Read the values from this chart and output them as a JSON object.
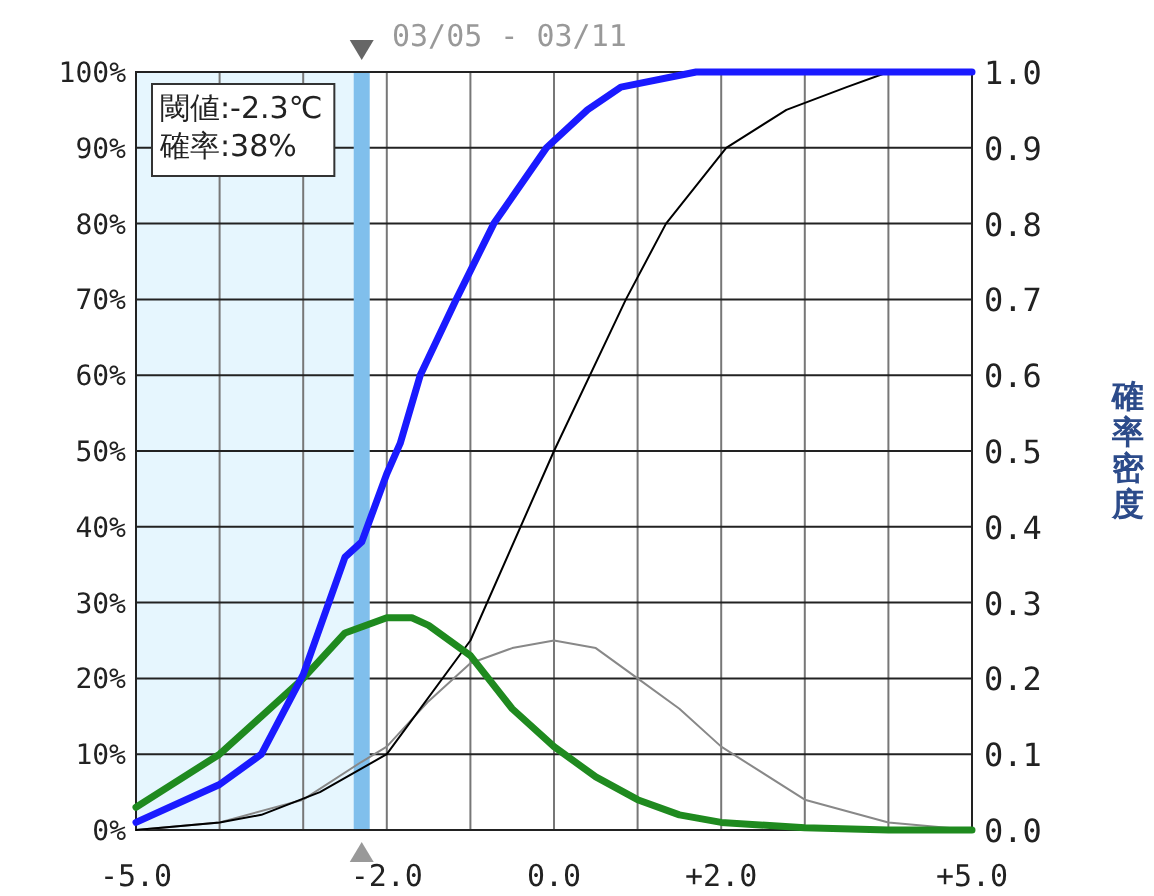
{
  "chart_data": {
    "type": "line",
    "title": "03/05 - 03/11",
    "y2label": "確率密度",
    "annotations": [
      "閾値:-2.3℃",
      "確率:38%"
    ],
    "xlim": [
      -5,
      5
    ],
    "xticks": [
      {
        "value": -5,
        "label": "-5.0"
      },
      {
        "value": -4,
        "label": null
      },
      {
        "value": -3,
        "label": null
      },
      {
        "value": -2,
        "label": "-2.0"
      },
      {
        "value": -1,
        "label": null
      },
      {
        "value": 0,
        "label": "0.0"
      },
      {
        "value": 1,
        "label": null
      },
      {
        "value": 2,
        "label": "+2.0"
      },
      {
        "value": 3,
        "label": null
      },
      {
        "value": 4,
        "label": null
      },
      {
        "value": 5,
        "label": "+5.0"
      }
    ],
    "ylim": [
      0,
      100
    ],
    "yticks": [
      {
        "value": 0,
        "label": "0%"
      },
      {
        "value": 10,
        "label": "10%"
      },
      {
        "value": 20,
        "label": "20%"
      },
      {
        "value": 30,
        "label": "30%"
      },
      {
        "value": 40,
        "label": "40%"
      },
      {
        "value": 50,
        "label": "50%"
      },
      {
        "value": 60,
        "label": "60%"
      },
      {
        "value": 70,
        "label": "70%"
      },
      {
        "value": 80,
        "label": "80%"
      },
      {
        "value": 90,
        "label": "90%"
      },
      {
        "value": 100,
        "label": "100%"
      }
    ],
    "y2lim": [
      0,
      1
    ],
    "y2ticks": [
      {
        "value": 0,
        "label": "0.0"
      },
      {
        "value": 0.1,
        "label": "0.1"
      },
      {
        "value": 0.2,
        "label": "0.2"
      },
      {
        "value": 0.3,
        "label": "0.3"
      },
      {
        "value": 0.4,
        "label": "0.4"
      },
      {
        "value": 0.5,
        "label": "0.5"
      },
      {
        "value": 0.6,
        "label": "0.6"
      },
      {
        "value": 0.7,
        "label": "0.7"
      },
      {
        "value": 0.8,
        "label": "0.8"
      },
      {
        "value": 0.9,
        "label": "0.9"
      },
      {
        "value": 1,
        "label": "1.0"
      }
    ],
    "grid": true,
    "bands": [
      {
        "axis": "x",
        "from": -5,
        "to": -2.3,
        "color": "#e6f6fe"
      }
    ],
    "ref_lines": [
      {
        "axis": "x",
        "value": -2.3,
        "color": "#80bfec"
      }
    ],
    "series": [
      {
        "color": "#888888",
        "axis": "y2",
        "x": [
          -5,
          -4,
          -3,
          -2.3,
          -2,
          -1.5,
          -1,
          -0.5,
          0,
          0.5,
          1,
          1.5,
          2,
          3,
          4,
          5
        ],
        "values": [
          0,
          0.01,
          0.04,
          0.09,
          0.11,
          0.17,
          0.22,
          0.24,
          0.25,
          0.24,
          0.2,
          0.16,
          0.11,
          0.04,
          0.01,
          0
        ]
      },
      {
        "color": "#000000",
        "x": [
          -5,
          -4,
          -3.5,
          -2.8,
          -2,
          -1,
          0,
          0.86,
          1.34,
          2.06,
          2.78,
          3.5,
          4,
          5
        ],
        "values": [
          0,
          1,
          2,
          5,
          10,
          25,
          50,
          70,
          80,
          90,
          95,
          98,
          100,
          100
        ]
      },
      {
        "color": "#1f8a1f",
        "axis": "y2",
        "x": [
          -5,
          -4,
          -3.5,
          -3,
          -2.5,
          -2,
          -1.7,
          -1.5,
          -1,
          -0.5,
          0,
          0.5,
          1,
          1.5,
          2,
          3,
          4,
          5
        ],
        "values": [
          0.03,
          0.1,
          0.15,
          0.2,
          0.26,
          0.28,
          0.28,
          0.27,
          0.23,
          0.16,
          0.11,
          0.07,
          0.04,
          0.02,
          0.01,
          0.003,
          0,
          0
        ]
      },
      {
        "color": "#1a1aff",
        "x": [
          -5,
          -4,
          -3.5,
          -3,
          -2.5,
          -2.3,
          -2,
          -1.84,
          -1.6,
          -1.17,
          -0.72,
          -0.09,
          0.4,
          0.8,
          1.7,
          5
        ],
        "values": [
          1,
          6,
          10,
          20.5,
          36,
          38,
          47,
          51,
          60,
          70,
          80,
          90,
          95,
          98,
          100,
          100
        ]
      }
    ]
  }
}
